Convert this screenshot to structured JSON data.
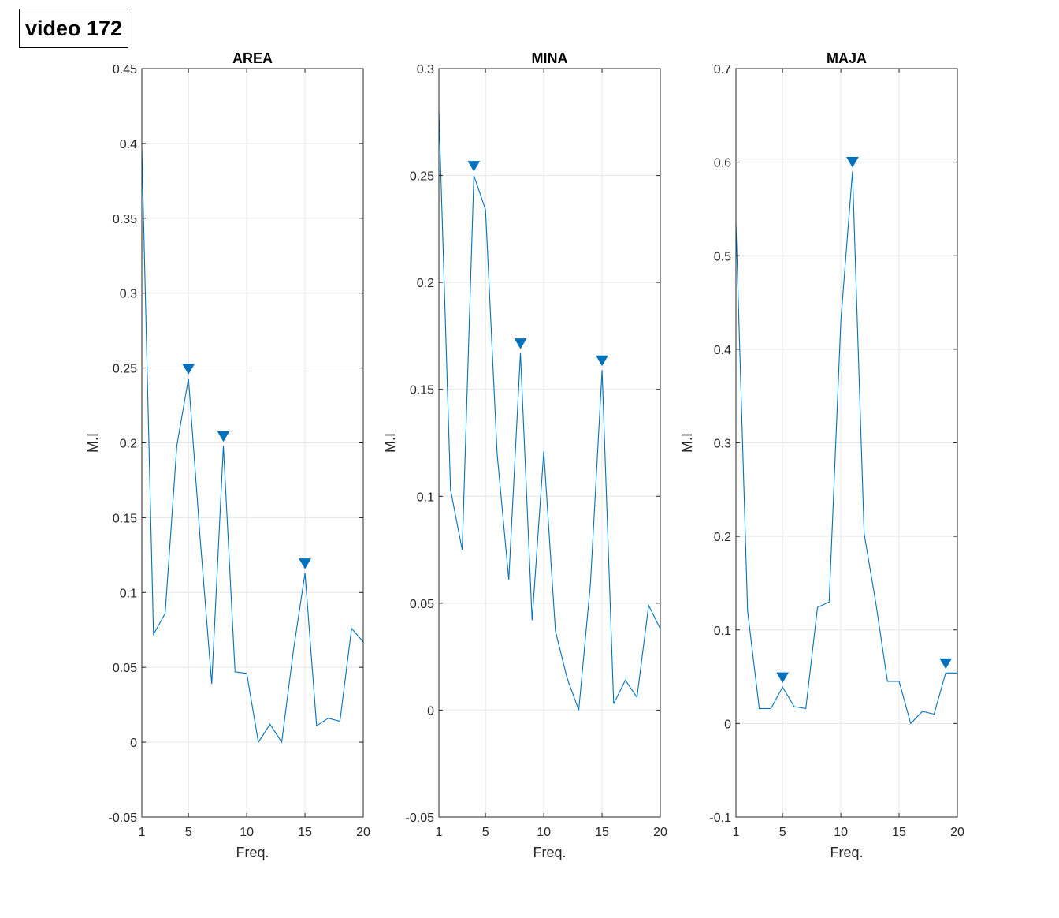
{
  "figure": {
    "title": "video 172"
  },
  "chart_data": [
    {
      "type": "line",
      "title": "AREA",
      "xlabel": "Freq.",
      "ylabel": "M.I",
      "xlim": [
        1,
        20
      ],
      "ylim": [
        -0.05,
        0.45
      ],
      "xticks": [
        1,
        5,
        10,
        15,
        20
      ],
      "yticks": [
        -0.05,
        0,
        0.05,
        0.1,
        0.15,
        0.2,
        0.25,
        0.3,
        0.35,
        0.4,
        0.45
      ],
      "ytick_labels": [
        "-0.05",
        "0",
        "0.05",
        "0.1",
        "0.15",
        "0.2",
        "0.25",
        "0.3",
        "0.35",
        "0.4",
        "0.45"
      ],
      "grid": true,
      "x": [
        1,
        2,
        3,
        4,
        5,
        6,
        7,
        8,
        9,
        10,
        11,
        12,
        13,
        14,
        15,
        16,
        17,
        18,
        19,
        20
      ],
      "values": [
        0.397,
        0.072,
        0.086,
        0.198,
        0.243,
        0.137,
        0.039,
        0.198,
        0.047,
        0.046,
        0.0,
        0.012,
        0.0,
        0.061,
        0.113,
        0.011,
        0.016,
        0.014,
        0.076,
        0.067
      ],
      "peak_markers": [
        {
          "x": 5,
          "y": 0.243
        },
        {
          "x": 8,
          "y": 0.198
        },
        {
          "x": 15,
          "y": 0.113
        }
      ],
      "color": "#0072BD"
    },
    {
      "type": "line",
      "title": "MINA",
      "xlabel": "Freq.",
      "ylabel": "M.I",
      "xlim": [
        1,
        20
      ],
      "ylim": [
        -0.05,
        0.3
      ],
      "xticks": [
        1,
        5,
        10,
        15,
        20
      ],
      "yticks": [
        -0.05,
        0,
        0.05,
        0.1,
        0.15,
        0.2,
        0.25,
        0.3
      ],
      "ytick_labels": [
        "-0.05",
        "0",
        "0.05",
        "0.1",
        "0.15",
        "0.2",
        "0.25",
        "0.3"
      ],
      "grid": true,
      "x": [
        1,
        2,
        3,
        4,
        5,
        6,
        7,
        8,
        9,
        10,
        11,
        12,
        13,
        14,
        15,
        16,
        17,
        18,
        19,
        20
      ],
      "values": [
        0.28,
        0.103,
        0.075,
        0.25,
        0.234,
        0.12,
        0.061,
        0.167,
        0.042,
        0.121,
        0.037,
        0.015,
        0.0,
        0.059,
        0.159,
        0.003,
        0.014,
        0.006,
        0.049,
        0.038
      ],
      "peak_markers": [
        {
          "x": 4,
          "y": 0.25
        },
        {
          "x": 8,
          "y": 0.167
        },
        {
          "x": 15,
          "y": 0.159
        }
      ],
      "color": "#0072BD"
    },
    {
      "type": "line",
      "title": "MAJA",
      "xlabel": "Freq.",
      "ylabel": "M.I",
      "xlim": [
        1,
        20
      ],
      "ylim": [
        -0.1,
        0.7
      ],
      "xticks": [
        1,
        5,
        10,
        15,
        20
      ],
      "yticks": [
        -0.1,
        0,
        0.1,
        0.2,
        0.3,
        0.4,
        0.5,
        0.6,
        0.7
      ],
      "ytick_labels": [
        "-0.1",
        "0",
        "0.1",
        "0.2",
        "0.3",
        "0.4",
        "0.5",
        "0.6",
        "0.7"
      ],
      "grid": true,
      "x": [
        1,
        2,
        3,
        4,
        5,
        6,
        7,
        8,
        9,
        10,
        11,
        12,
        13,
        14,
        15,
        16,
        17,
        18,
        19,
        20
      ],
      "values": [
        0.535,
        0.12,
        0.016,
        0.016,
        0.039,
        0.018,
        0.016,
        0.124,
        0.13,
        0.43,
        0.59,
        0.203,
        0.129,
        0.045,
        0.045,
        0.0,
        0.013,
        0.01,
        0.054,
        0.054
      ],
      "peak_markers": [
        {
          "x": 5,
          "y": 0.039
        },
        {
          "x": 11,
          "y": 0.59
        },
        {
          "x": 19,
          "y": 0.054
        }
      ],
      "color": "#0072BD"
    }
  ]
}
